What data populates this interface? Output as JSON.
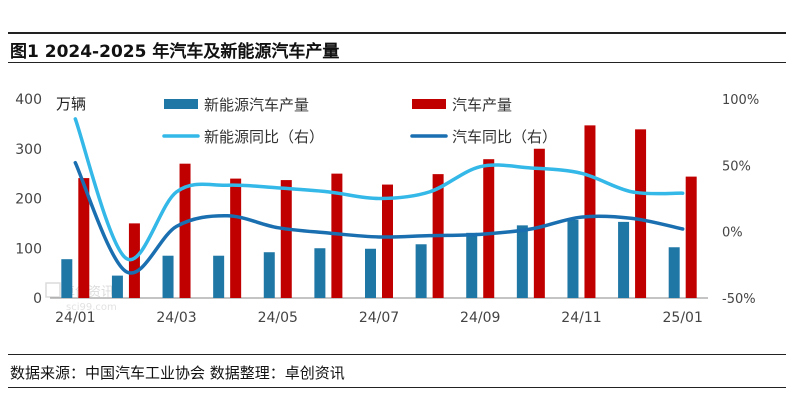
{
  "header": {
    "title": "图1 2024-2025 年汽车及新能源汽车产量"
  },
  "footer": {
    "source": "数据来源：中国汽车工业协会  数据整理：卓创资讯"
  },
  "colors": {
    "nev_bar": "#1F77A6",
    "car_bar": "#C00000",
    "nev_line": "#33B8E8",
    "car_line": "#1A6FB0",
    "axis_text": "#444444"
  },
  "chart_data": {
    "type": "bar",
    "title": "",
    "y_unit": "万辆",
    "ylim": [
      0,
      400
    ],
    "yticks": [
      "0",
      "100",
      "200",
      "300",
      "400"
    ],
    "y2lim": [
      -50,
      100
    ],
    "y2ticks": [
      "-50%",
      "0%",
      "50%",
      "100%"
    ],
    "categories": [
      "24/01",
      "24/02",
      "24/03",
      "24/04",
      "24/05",
      "24/06",
      "24/07",
      "24/08",
      "24/09",
      "24/10",
      "24/11",
      "24/12",
      "25/01"
    ],
    "x_tick_labels": [
      "24/01",
      "",
      "24/03",
      "",
      "24/05",
      "",
      "24/07",
      "",
      "24/09",
      "",
      "24/11",
      "",
      "25/01"
    ],
    "series": [
      {
        "name": "新能源汽车产量",
        "type": "bar",
        "axis": "left",
        "values": [
          78,
          45,
          85,
          85,
          92,
          100,
          99,
          108,
          131,
          146,
          157,
          153,
          102
        ]
      },
      {
        "name": "汽车产量",
        "type": "bar",
        "axis": "left",
        "values": [
          241,
          150,
          270,
          240,
          237,
          250,
          228,
          249,
          279,
          300,
          347,
          339,
          244
        ]
      },
      {
        "name": "新能源同比（右）",
        "type": "line",
        "axis": "right",
        "values": [
          85,
          -20,
          30,
          35,
          33,
          30,
          25,
          30,
          49,
          48,
          44,
          30,
          29
        ]
      },
      {
        "name": "汽车同比（右）",
        "type": "line",
        "axis": "right",
        "values": [
          52,
          -30,
          4,
          12,
          3,
          -1,
          -4,
          -3,
          -2,
          2,
          11,
          10,
          2
        ]
      }
    ],
    "legend_position": "top",
    "grid": false,
    "watermark": "卓创资讯 sci99.com"
  }
}
